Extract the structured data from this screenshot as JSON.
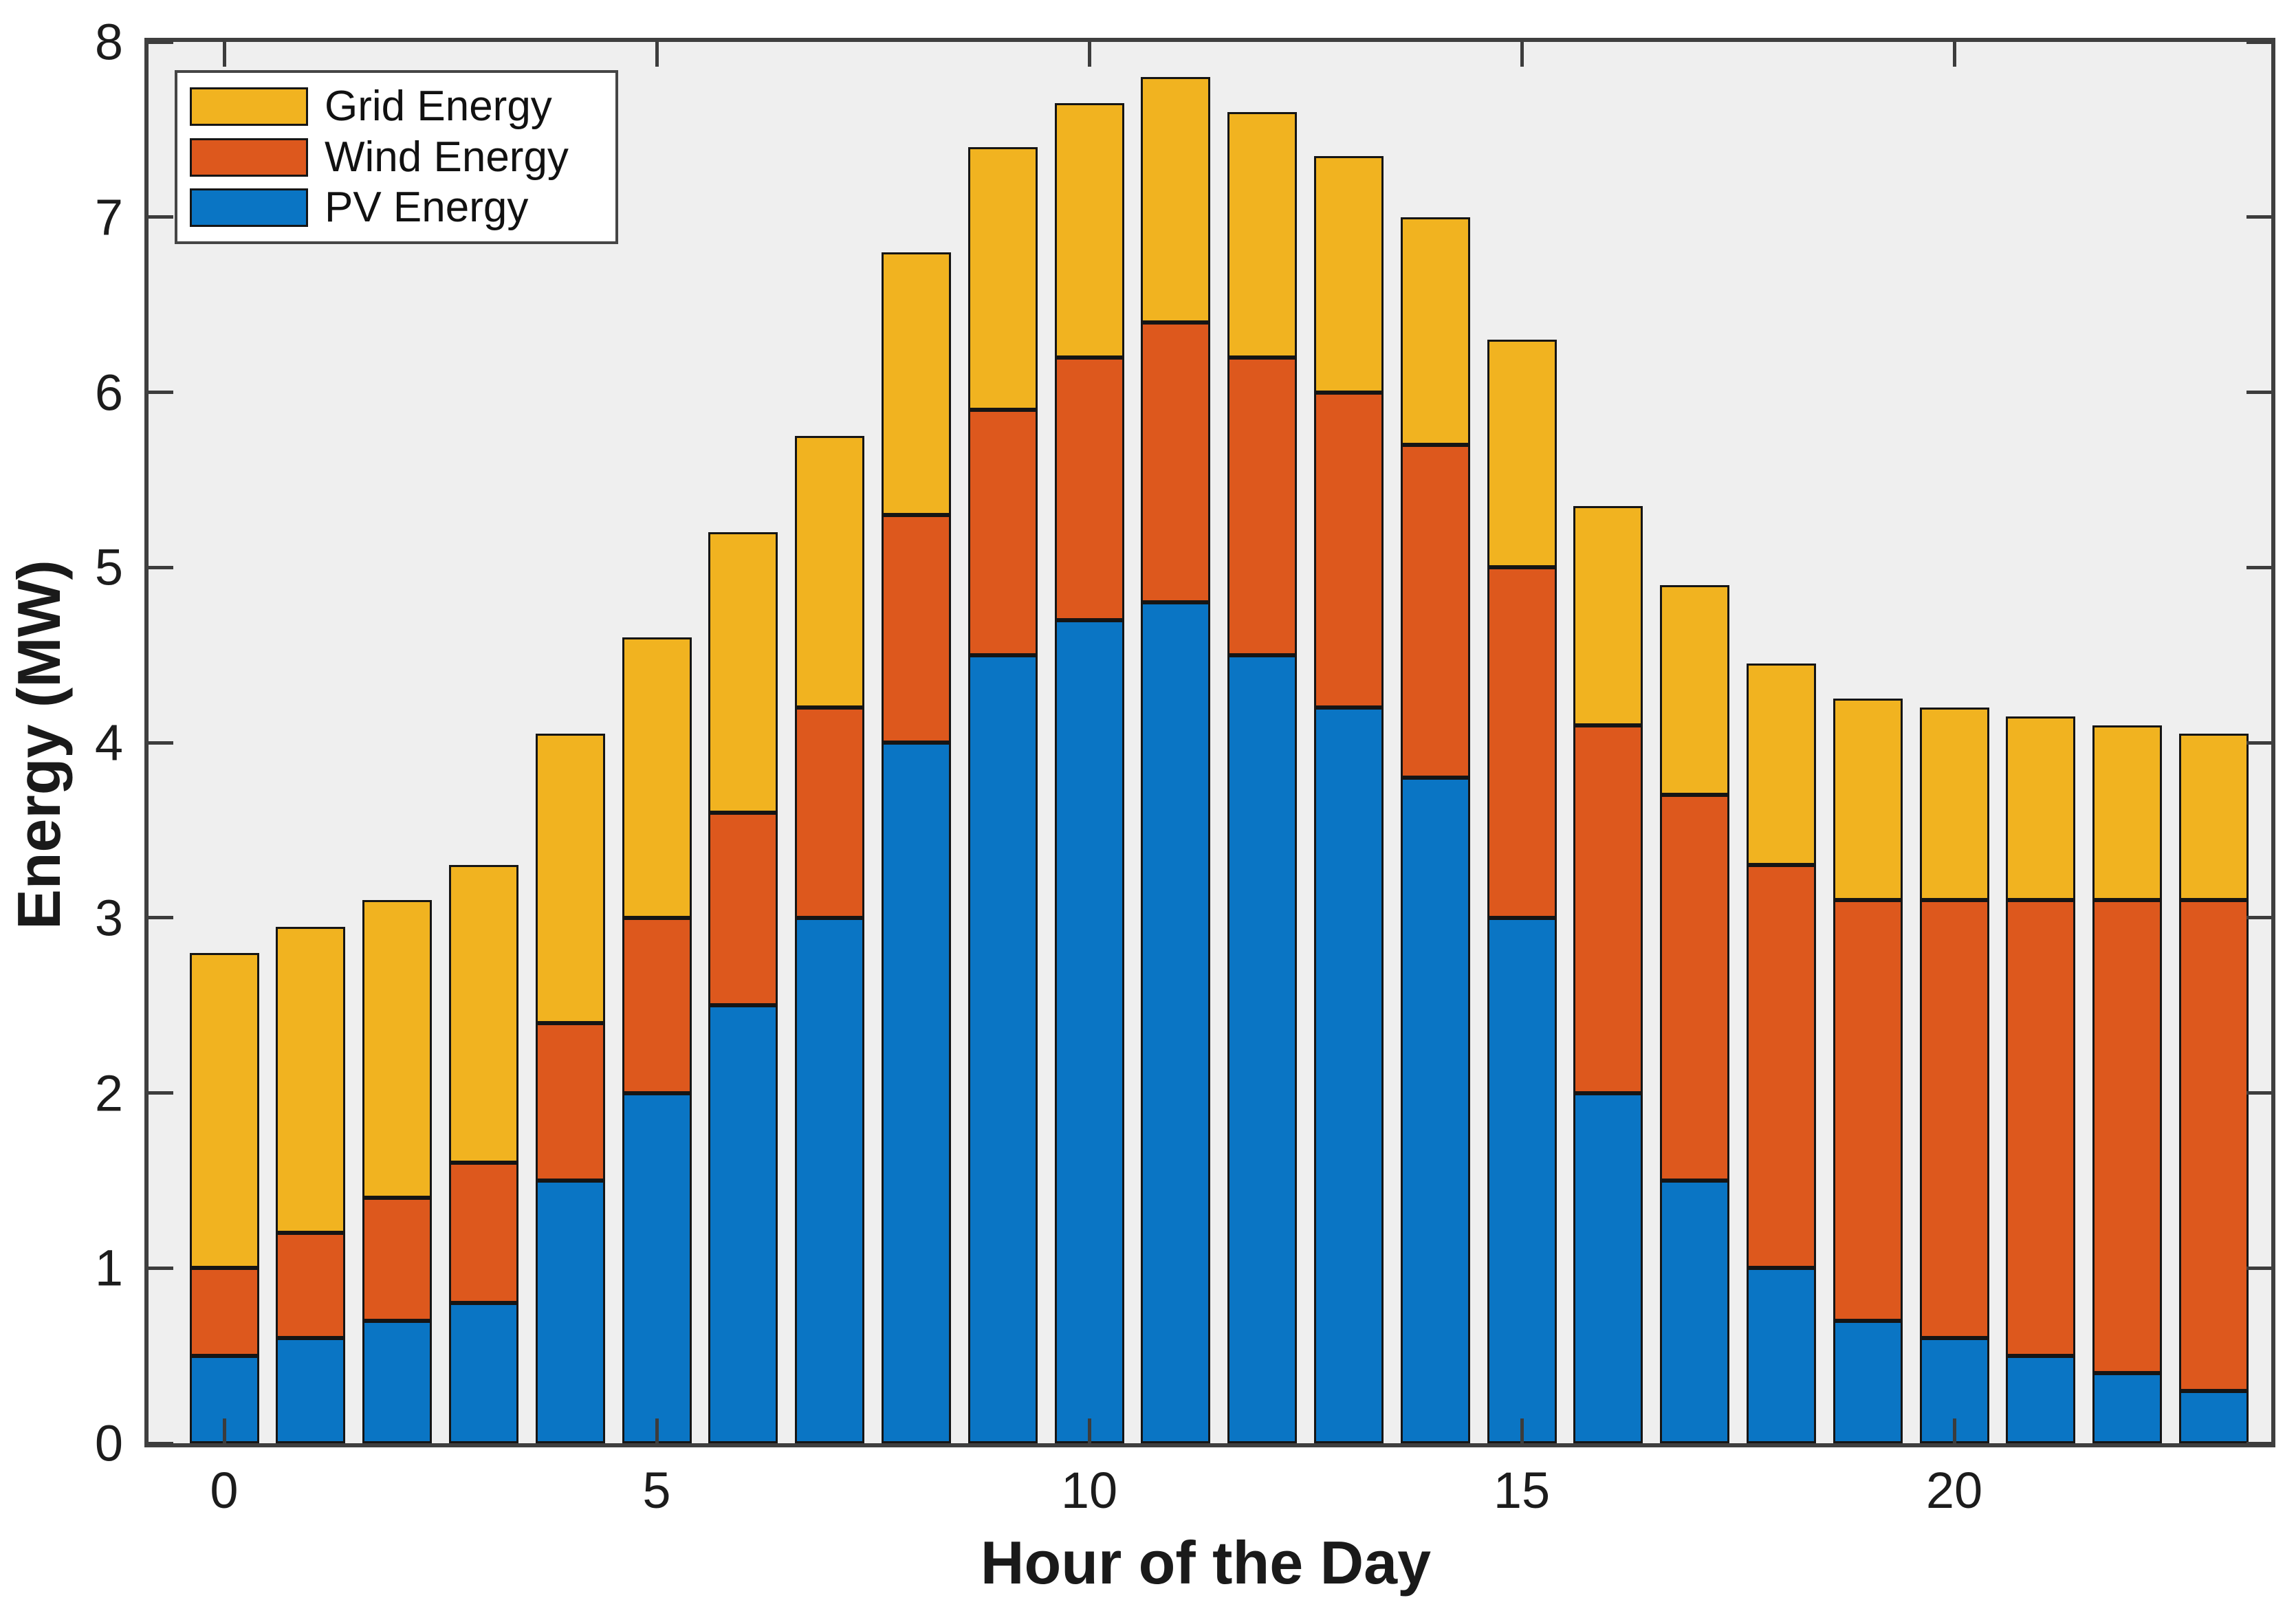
{
  "chart_data": {
    "type": "bar",
    "stacked": true,
    "title": "",
    "xlabel": "Hour of the Day",
    "ylabel": "Energy (MW)",
    "x": [
      0,
      1,
      2,
      3,
      4,
      5,
      6,
      7,
      8,
      9,
      10,
      11,
      12,
      13,
      14,
      15,
      16,
      17,
      18,
      19,
      20,
      21,
      22,
      23
    ],
    "series": [
      {
        "name": "PV Energy",
        "color": "#0a75c4",
        "values": [
          0.5,
          0.6,
          0.7,
          0.8,
          1.5,
          2.0,
          2.5,
          3.0,
          4.0,
          4.5,
          4.7,
          4.8,
          4.5,
          4.2,
          3.8,
          3.0,
          2.0,
          1.5,
          1.0,
          0.7,
          0.6,
          0.5,
          0.4,
          0.3
        ]
      },
      {
        "name": "Wind Energy",
        "color": "#dd581d",
        "values": [
          0.5,
          0.6,
          0.7,
          0.8,
          0.9,
          1.0,
          1.1,
          1.2,
          1.3,
          1.4,
          1.5,
          1.6,
          1.7,
          1.8,
          1.9,
          2.0,
          2.1,
          2.2,
          2.3,
          2.4,
          2.5,
          2.6,
          2.7,
          2.8
        ]
      },
      {
        "name": "Grid Energy",
        "color": "#f1b320",
        "values": [
          1.8,
          1.75,
          1.7,
          1.7,
          1.65,
          1.6,
          1.6,
          1.55,
          1.5,
          1.5,
          1.45,
          1.4,
          1.4,
          1.35,
          1.3,
          1.3,
          1.25,
          1.2,
          1.15,
          1.15,
          1.1,
          1.05,
          1.0,
          0.95
        ]
      }
    ],
    "stack_totals": [
      2.8,
      2.95,
      3.1,
      3.3,
      4.05,
      4.6,
      5.2,
      5.75,
      6.8,
      7.4,
      7.65,
      7.8,
      7.6,
      7.35,
      7.0,
      6.3,
      5.35,
      4.9,
      4.45,
      4.25,
      4.2,
      4.15,
      4.1,
      4.05
    ],
    "ylim": [
      0,
      8
    ],
    "yticks": [
      0,
      1,
      2,
      3,
      4,
      5,
      6,
      7,
      8
    ],
    "xticks": [
      0,
      5,
      10,
      15,
      20
    ],
    "grid": false,
    "plot_background": "#efefef",
    "bar_edge_color": "#151515",
    "legend_position": "top-left",
    "legend_order": [
      "Grid Energy",
      "Wind Energy",
      "PV Energy"
    ]
  }
}
